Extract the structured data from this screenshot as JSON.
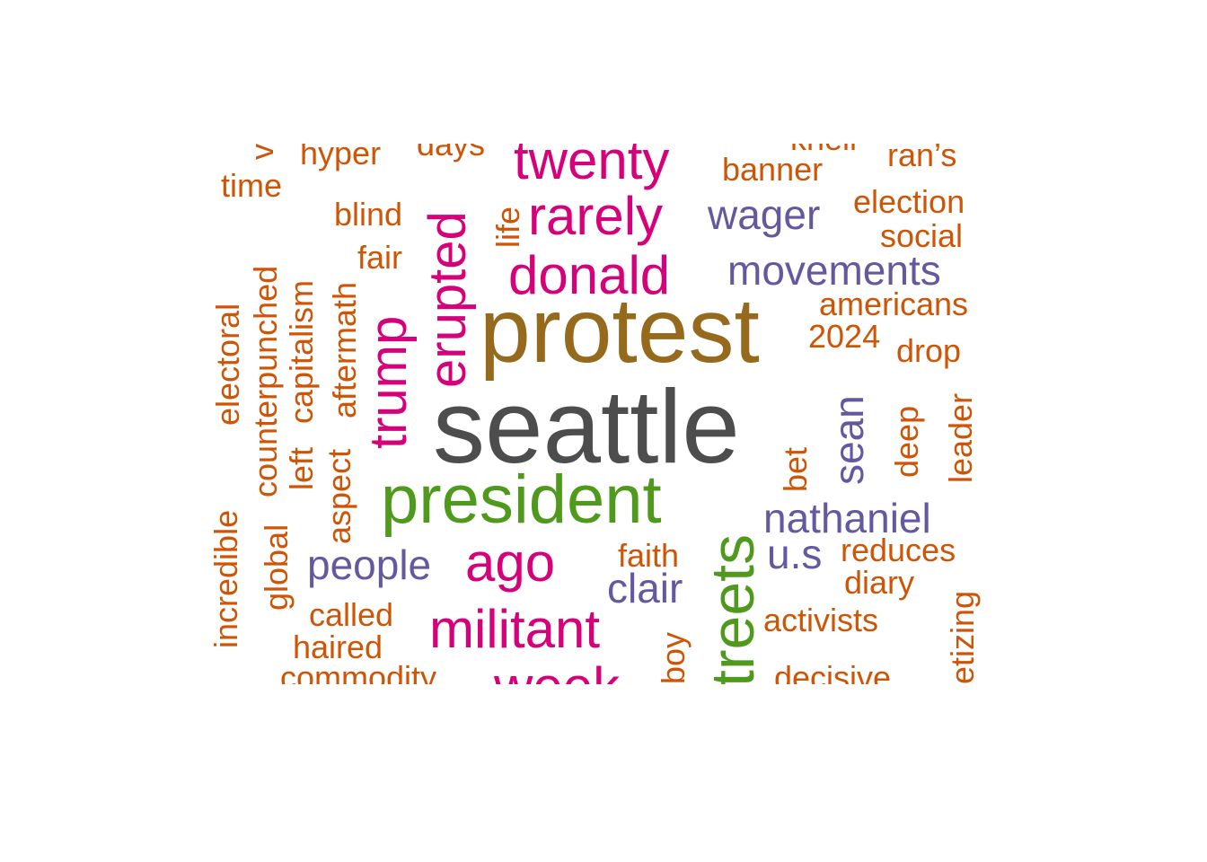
{
  "palette": {
    "dark_gray": "#4d4d4d",
    "brown": "#966a1c",
    "green": "#4f9a1d",
    "magenta": "#d6007a",
    "purple": "#6459a0",
    "orange": "#cf5506"
  },
  "words": [
    {
      "text": "seattle",
      "color": "dark_gray"
    },
    {
      "text": "protest",
      "color": "brown"
    },
    {
      "text": "president",
      "color": "green"
    },
    {
      "text": "treets",
      "color": "green"
    },
    {
      "text": "twenty",
      "color": "magenta"
    },
    {
      "text": "rarely",
      "color": "magenta"
    },
    {
      "text": "donald",
      "color": "magenta"
    },
    {
      "text": "erupted",
      "color": "magenta"
    },
    {
      "text": "trump",
      "color": "magenta"
    },
    {
      "text": "ago",
      "color": "magenta"
    },
    {
      "text": "militant",
      "color": "magenta"
    },
    {
      "text": "week",
      "color": "magenta"
    },
    {
      "text": "wager",
      "color": "purple"
    },
    {
      "text": "movements",
      "color": "purple"
    },
    {
      "text": "sean",
      "color": "purple"
    },
    {
      "text": "nathaniel",
      "color": "purple"
    },
    {
      "text": "people",
      "color": "purple"
    },
    {
      "text": "clair",
      "color": "purple"
    },
    {
      "text": "u.s",
      "color": "purple"
    },
    {
      "text": "hyper",
      "color": "orange"
    },
    {
      "text": "days",
      "color": "orange"
    },
    {
      "text": "knell",
      "color": "orange"
    },
    {
      "text": "ran’s",
      "color": "orange"
    },
    {
      "text": "v",
      "color": "orange"
    },
    {
      "text": "time",
      "color": "orange"
    },
    {
      "text": "banner",
      "color": "orange"
    },
    {
      "text": "election",
      "color": "orange"
    },
    {
      "text": "blind",
      "color": "orange"
    },
    {
      "text": "life",
      "color": "orange"
    },
    {
      "text": "social",
      "color": "orange"
    },
    {
      "text": "fair",
      "color": "orange"
    },
    {
      "text": "americans",
      "color": "orange"
    },
    {
      "text": "2024",
      "color": "orange"
    },
    {
      "text": "drop",
      "color": "orange"
    },
    {
      "text": "electoral",
      "color": "orange"
    },
    {
      "text": "counterpunched",
      "color": "orange"
    },
    {
      "text": "capitalism",
      "color": "orange"
    },
    {
      "text": "aftermath",
      "color": "orange"
    },
    {
      "text": "left",
      "color": "orange"
    },
    {
      "text": "aspect",
      "color": "orange"
    },
    {
      "text": "leader",
      "color": "orange"
    },
    {
      "text": "deep",
      "color": "orange"
    },
    {
      "text": "bet",
      "color": "orange"
    },
    {
      "text": "incredible",
      "color": "orange"
    },
    {
      "text": "global",
      "color": "orange"
    },
    {
      "text": "faith",
      "color": "orange"
    },
    {
      "text": "reduces",
      "color": "orange"
    },
    {
      "text": "diary",
      "color": "orange"
    },
    {
      "text": "called",
      "color": "orange"
    },
    {
      "text": "activists",
      "color": "orange"
    },
    {
      "text": "haired",
      "color": "orange"
    },
    {
      "text": "boy",
      "color": "orange"
    },
    {
      "text": "etizing",
      "color": "orange"
    },
    {
      "text": "commodity",
      "color": "orange"
    },
    {
      "text": "decisive",
      "color": "orange"
    }
  ]
}
